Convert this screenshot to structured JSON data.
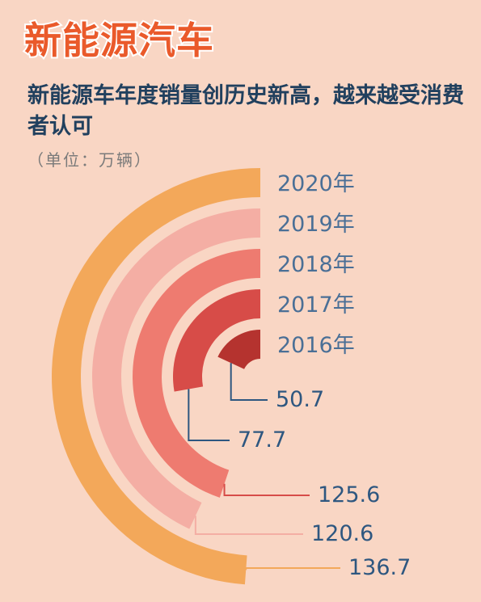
{
  "title": "新能源汽车",
  "subtitle": "新能源车年度销量创历史新高，越来越受消费者认可",
  "unit": "（单位：万辆）",
  "colors": {
    "background": "#f9d6c4",
    "title": "#ea5a2b",
    "subtitle": "#21405e",
    "year_text": "#4a6f96",
    "value_text": "#2e5780"
  },
  "chart_data": {
    "type": "radial-bar",
    "unit": "万辆",
    "categories": [
      "2016年",
      "2017年",
      "2018年",
      "2019年",
      "2020年"
    ],
    "values": [
      50.7,
      77.7,
      125.6,
      120.6,
      136.7
    ],
    "value_labels": [
      "50.7",
      "77.7",
      "125.6",
      "120.6",
      "136.7"
    ],
    "colors": [
      "#b5332f",
      "#d74c48",
      "#ee7b70",
      "#f4aea4",
      "#f3a85a"
    ],
    "leader_colors": [
      "#2e5780",
      "#2e5780",
      "#d74c48",
      "#f4aea4",
      "#f3a85a"
    ]
  }
}
